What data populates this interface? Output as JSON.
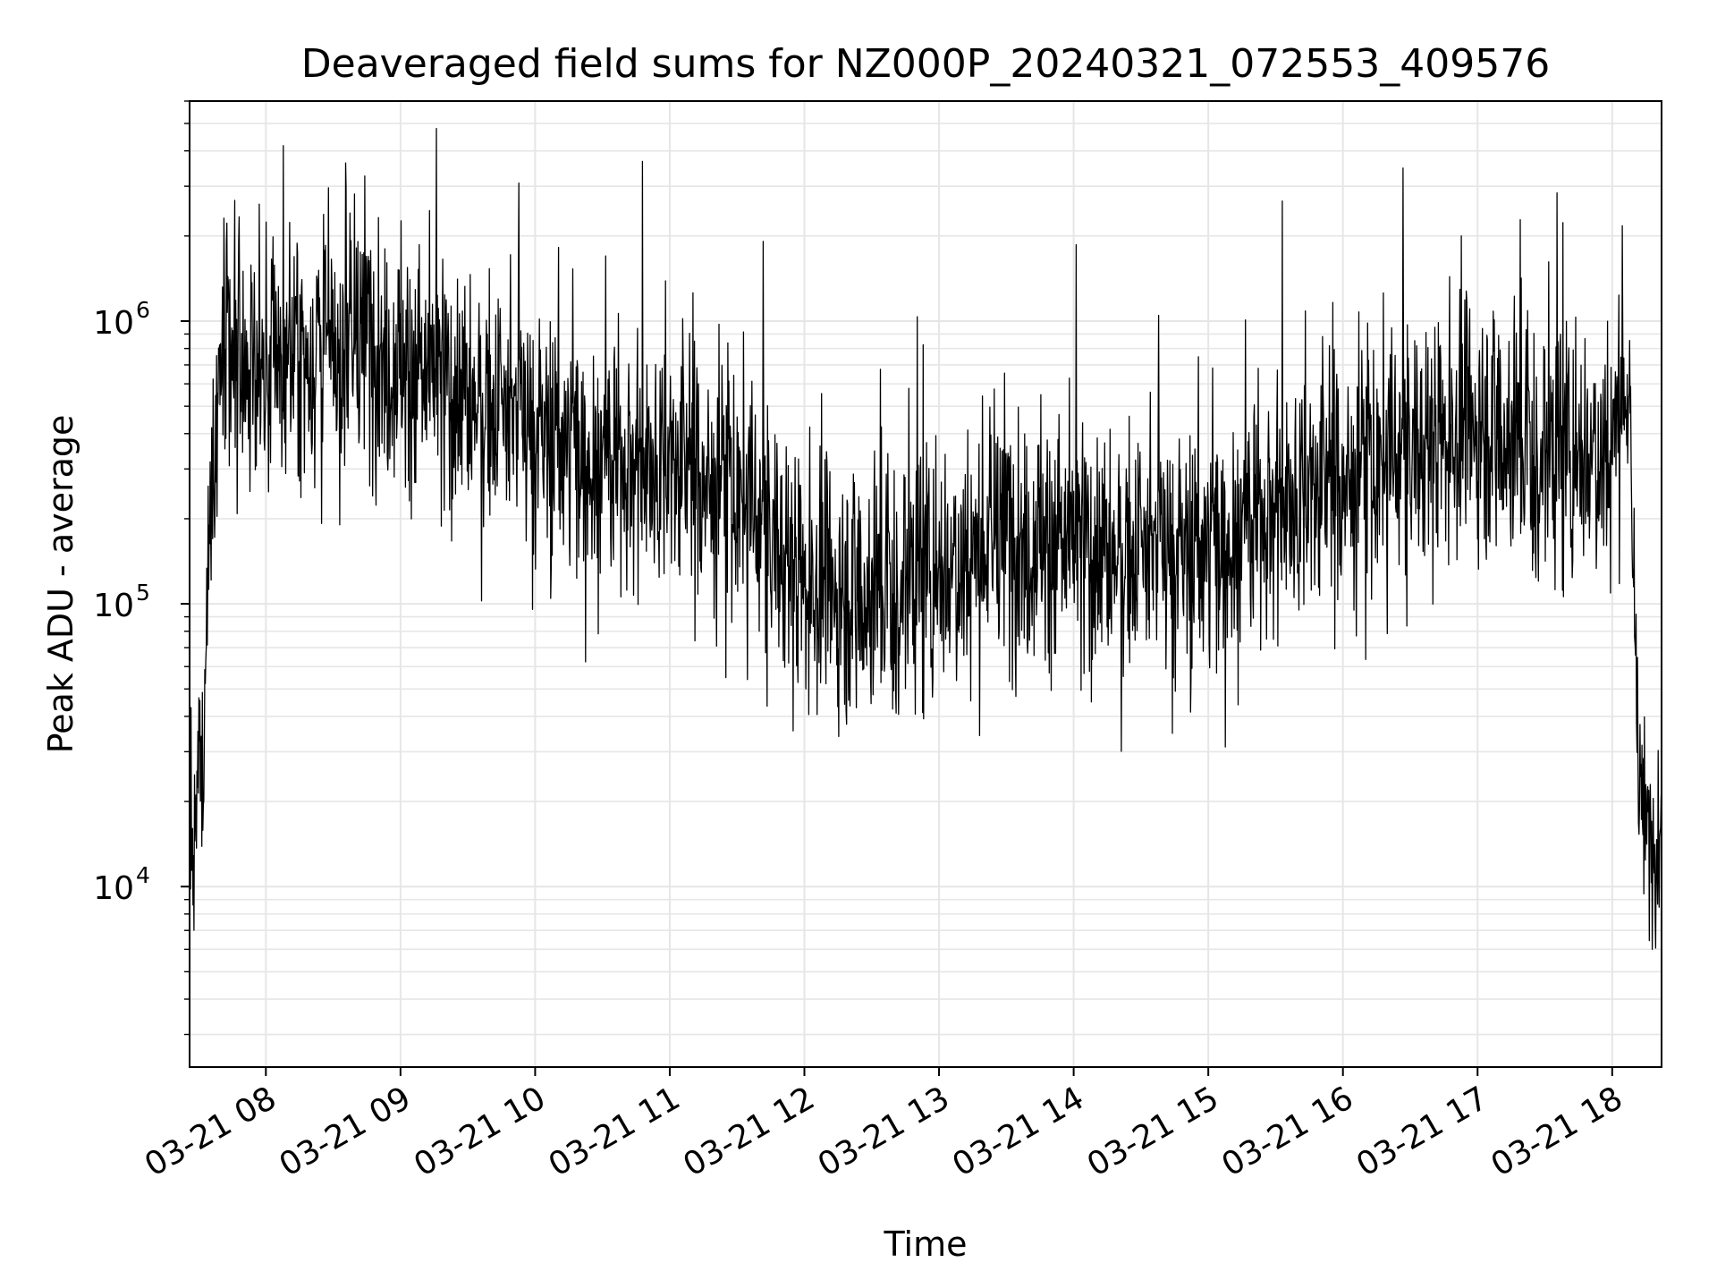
{
  "chart_data": {
    "type": "line",
    "title": "Deaveraged field sums for NZ000P_20240321_072553_409576",
    "xlabel": "Time",
    "ylabel": "Peak ADU - average",
    "yscale": "log",
    "grid": true,
    "legend": "none",
    "colors": {
      "line": "#000000",
      "grid": "#e6e6e6",
      "axes": "#000000"
    },
    "xlim": [
      "2024-03-21 07:26",
      "2024-03-21 18:22"
    ],
    "ylim": [
      2300,
      6000000
    ],
    "x_ticks": [
      "03-21 08",
      "03-21 09",
      "03-21 10",
      "03-21 11",
      "03-21 12",
      "03-21 13",
      "03-21 14",
      "03-21 15",
      "03-21 16",
      "03-21 17",
      "03-21 18"
    ],
    "x_tick_times": [
      "2024-03-21 08:00",
      "2024-03-21 09:00",
      "2024-03-21 10:00",
      "2024-03-21 11:00",
      "2024-03-21 12:00",
      "2024-03-21 13:00",
      "2024-03-21 14:00",
      "2024-03-21 15:00",
      "2024-03-21 16:00",
      "2024-03-21 17:00",
      "2024-03-21 18:00"
    ],
    "y_ticks": [
      {
        "base": "10",
        "exp": "4",
        "value": 10000
      },
      {
        "base": "10",
        "exp": "5",
        "value": 100000
      },
      {
        "base": "10",
        "exp": "6",
        "value": 1000000
      }
    ],
    "series": [
      {
        "x": [
          "2024-03-21 07:26",
          "2024-03-21 07:28",
          "2024-03-21 07:30",
          "2024-03-21 07:32",
          "2024-03-21 07:34",
          "2024-03-21 07:36",
          "2024-03-21 07:40",
          "2024-03-21 07:45",
          "2024-03-21 08:00",
          "2024-03-21 08:15",
          "2024-03-21 08:30",
          "2024-03-21 08:45",
          "2024-03-21 09:00",
          "2024-03-21 09:30",
          "2024-03-21 10:00",
          "2024-03-21 10:30",
          "2024-03-21 11:00",
          "2024-03-21 11:30",
          "2024-03-21 12:00",
          "2024-03-21 12:30",
          "2024-03-21 13:00",
          "2024-03-21 13:30",
          "2024-03-21 14:00",
          "2024-03-21 14:30",
          "2024-03-21 15:00",
          "2024-03-21 15:30",
          "2024-03-21 16:00",
          "2024-03-21 16:30",
          "2024-03-21 17:00",
          "2024-03-21 17:30",
          "2024-03-21 18:00",
          "2024-03-21 18:05",
          "2024-03-21 18:08",
          "2024-03-21 18:10",
          "2024-03-21 18:12",
          "2024-03-21 18:15",
          "2024-03-21 18:18",
          "2024-03-21 18:22"
        ],
        "values": [
          20000,
          9000,
          30000,
          25000,
          120000,
          300000,
          700000,
          650000,
          700000,
          800000,
          750000,
          900000,
          700000,
          550000,
          420000,
          330000,
          320000,
          250000,
          120000,
          110000,
          140000,
          180000,
          160000,
          150000,
          160000,
          230000,
          280000,
          350000,
          450000,
          350000,
          380000,
          700000,
          400000,
          80000,
          25000,
          15000,
          14000,
          16000
        ]
      }
    ]
  }
}
